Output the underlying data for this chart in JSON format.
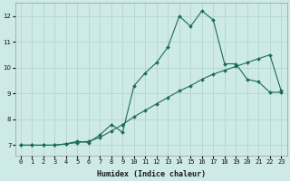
{
  "title": "",
  "xlabel": "Humidex (Indice chaleur)",
  "ylabel": "",
  "bg_color": "#ceeae6",
  "grid_color": "#b8d8d4",
  "line_color": "#1a6b5a",
  "x_min": -0.5,
  "x_max": 23.5,
  "y_min": 6.6,
  "y_max": 12.5,
  "yticks": [
    7,
    8,
    9,
    10,
    11,
    12
  ],
  "xticks": [
    0,
    1,
    2,
    3,
    4,
    5,
    6,
    7,
    8,
    9,
    10,
    11,
    12,
    13,
    14,
    15,
    16,
    17,
    18,
    19,
    20,
    21,
    22,
    23
  ],
  "line1_x": [
    0,
    1,
    2,
    3,
    4,
    5,
    6,
    7,
    8,
    9,
    10,
    11,
    12,
    13,
    14,
    15,
    16,
    17,
    18,
    19,
    20,
    21,
    22,
    23
  ],
  "line1_y": [
    7.0,
    7.0,
    7.0,
    7.0,
    7.05,
    7.1,
    7.15,
    7.3,
    7.55,
    7.8,
    8.1,
    8.35,
    8.6,
    8.85,
    9.1,
    9.3,
    9.55,
    9.75,
    9.9,
    10.05,
    10.2,
    10.35,
    10.5,
    9.1
  ],
  "line2_x": [
    0,
    1,
    2,
    3,
    4,
    5,
    6,
    7,
    8,
    9,
    10,
    11,
    12,
    13,
    14,
    15,
    16,
    17,
    18,
    19,
    20,
    21,
    22,
    23
  ],
  "line2_y": [
    7.0,
    7.0,
    7.0,
    7.0,
    7.05,
    7.15,
    7.1,
    7.4,
    7.8,
    7.5,
    9.3,
    9.8,
    10.2,
    10.8,
    12.0,
    11.6,
    12.2,
    11.85,
    10.15,
    10.15,
    9.55,
    9.45,
    9.05,
    9.05
  ]
}
